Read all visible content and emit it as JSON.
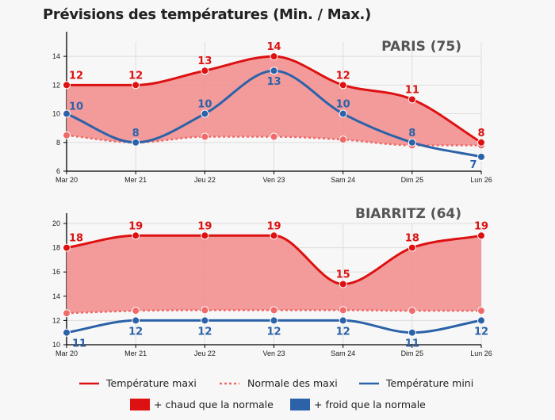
{
  "title": "Prévisions des températures (Min. / Max.)",
  "colors": {
    "max": "#dd1111",
    "normal": "#f06a6a",
    "min": "#2b62a8",
    "warm_fill": "#f29090",
    "cold_fill": "#2b62a8"
  },
  "chart_data": [
    {
      "type": "line",
      "title": "PARIS (75)",
      "categories": [
        "Mar 20",
        "Mer 21",
        "Jeu 22",
        "Ven 23",
        "Sam 24",
        "Dim 25",
        "Lun 26"
      ],
      "ylim": [
        6,
        15
      ],
      "yticks": [
        6,
        8,
        10,
        12,
        14
      ],
      "grid": true,
      "series": [
        {
          "name": "Température maxi",
          "values": [
            12,
            12,
            13,
            14,
            12,
            11,
            8
          ]
        },
        {
          "name": "Normale des maxi",
          "values": [
            8.5,
            8,
            8.4,
            8.4,
            8.2,
            7.8,
            7.8
          ]
        },
        {
          "name": "Température mini",
          "values": [
            10,
            8,
            10,
            13,
            10,
            8,
            7
          ]
        }
      ]
    },
    {
      "type": "line",
      "title": "BIARRITZ (64)",
      "categories": [
        "Mar 20",
        "Mer 21",
        "Jeu 22",
        "Ven 23",
        "Sam 24",
        "Dim 25",
        "Lun 26"
      ],
      "ylim": [
        10,
        20
      ],
      "yticks": [
        10,
        12,
        14,
        16,
        18,
        20
      ],
      "grid": true,
      "series": [
        {
          "name": "Température maxi",
          "values": [
            18,
            19,
            19,
            19,
            15,
            18,
            19
          ]
        },
        {
          "name": "Normale des maxi",
          "values": [
            12.6,
            12.8,
            12.85,
            12.85,
            12.85,
            12.8,
            12.8
          ]
        },
        {
          "name": "Température mini",
          "values": [
            11,
            12,
            12,
            12,
            12,
            11,
            12
          ]
        }
      ]
    }
  ],
  "legend": {
    "max": "Température maxi",
    "normal": "Normale des maxi",
    "min": "Température mini",
    "warm": "+ chaud que la normale",
    "cold": "+ froid que la normale"
  }
}
